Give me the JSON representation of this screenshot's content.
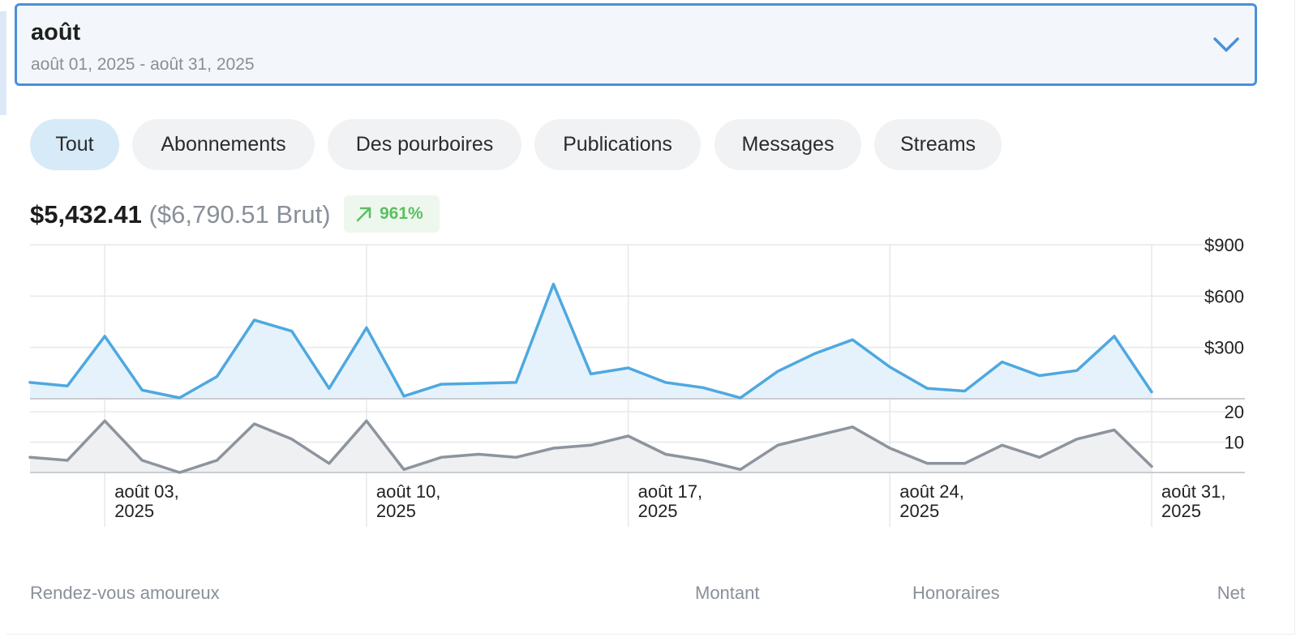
{
  "period": {
    "title": "août",
    "range": "août 01, 2025 - août 31, 2025"
  },
  "tabs": [
    {
      "label": "Tout",
      "active": true
    },
    {
      "label": "Abonnements",
      "active": false
    },
    {
      "label": "Des pourboires",
      "active": false
    },
    {
      "label": "Publications",
      "active": false
    },
    {
      "label": "Messages",
      "active": false
    },
    {
      "label": "Streams",
      "active": false
    }
  ],
  "summary": {
    "net": "$5,432.41",
    "gross": "($6,790.51 Brut)",
    "change": "961%",
    "change_color": "#5cbf62"
  },
  "chart_data": [
    {
      "type": "area",
      "x": [
        "2025-08-01",
        "2025-08-02",
        "2025-08-03",
        "2025-08-04",
        "2025-08-05",
        "2025-08-06",
        "2025-08-07",
        "2025-08-08",
        "2025-08-09",
        "2025-08-10",
        "2025-08-11",
        "2025-08-12",
        "2025-08-13",
        "2025-08-14",
        "2025-08-15",
        "2025-08-16",
        "2025-08-17",
        "2025-08-18",
        "2025-08-19",
        "2025-08-20",
        "2025-08-21",
        "2025-08-22",
        "2025-08-23",
        "2025-08-24",
        "2025-08-25",
        "2025-08-26",
        "2025-08-27",
        "2025-08-28",
        "2025-08-29",
        "2025-08-30",
        "2025-08-31"
      ],
      "series": [
        {
          "values": [
            95,
            75,
            365,
            50,
            5,
            130,
            460,
            395,
            60,
            415,
            15,
            85,
            90,
            95,
            670,
            145,
            180,
            95,
            65,
            5,
            160,
            265,
            345,
            185,
            60,
            45,
            215,
            135,
            165,
            365,
            40
          ],
          "color": "#4ea8e0"
        }
      ],
      "yticks": [
        "$900",
        "$600",
        "$300"
      ],
      "ytick_values": [
        900,
        600,
        300
      ],
      "ylim": [
        0,
        900
      ],
      "grid": true
    },
    {
      "type": "area",
      "x": [
        "2025-08-01",
        "2025-08-02",
        "2025-08-03",
        "2025-08-04",
        "2025-08-05",
        "2025-08-06",
        "2025-08-07",
        "2025-08-08",
        "2025-08-09",
        "2025-08-10",
        "2025-08-11",
        "2025-08-12",
        "2025-08-13",
        "2025-08-14",
        "2025-08-15",
        "2025-08-16",
        "2025-08-17",
        "2025-08-18",
        "2025-08-19",
        "2025-08-20",
        "2025-08-21",
        "2025-08-22",
        "2025-08-23",
        "2025-08-24",
        "2025-08-25",
        "2025-08-26",
        "2025-08-27",
        "2025-08-28",
        "2025-08-29",
        "2025-08-30",
        "2025-08-31"
      ],
      "series": [
        {
          "values": [
            5,
            4,
            17,
            4,
            0,
            4,
            16,
            11,
            3,
            17,
            1,
            5,
            6,
            5,
            8,
            9,
            12,
            6,
            4,
            1,
            9,
            12,
            15,
            8,
            3,
            3,
            9,
            5,
            11,
            14,
            2
          ],
          "color": "#8d949d"
        }
      ],
      "yticks": [
        "20",
        "10"
      ],
      "ytick_values": [
        20,
        10
      ],
      "ylim": [
        0,
        20
      ],
      "grid": true
    }
  ],
  "date_axis": [
    {
      "line1": "août 03,",
      "line2": "2025",
      "day": 3
    },
    {
      "line1": "août 10,",
      "line2": "2025",
      "day": 10
    },
    {
      "line1": "août 17,",
      "line2": "2025",
      "day": 17
    },
    {
      "line1": "août 24,",
      "line2": "2025",
      "day": 24
    },
    {
      "line1": "août 31,",
      "line2": "2025",
      "day": 31
    }
  ],
  "table_header": {
    "col1": "Rendez-vous amoureux",
    "col2": "Montant",
    "col3": "Honoraires",
    "col4": "Net"
  }
}
